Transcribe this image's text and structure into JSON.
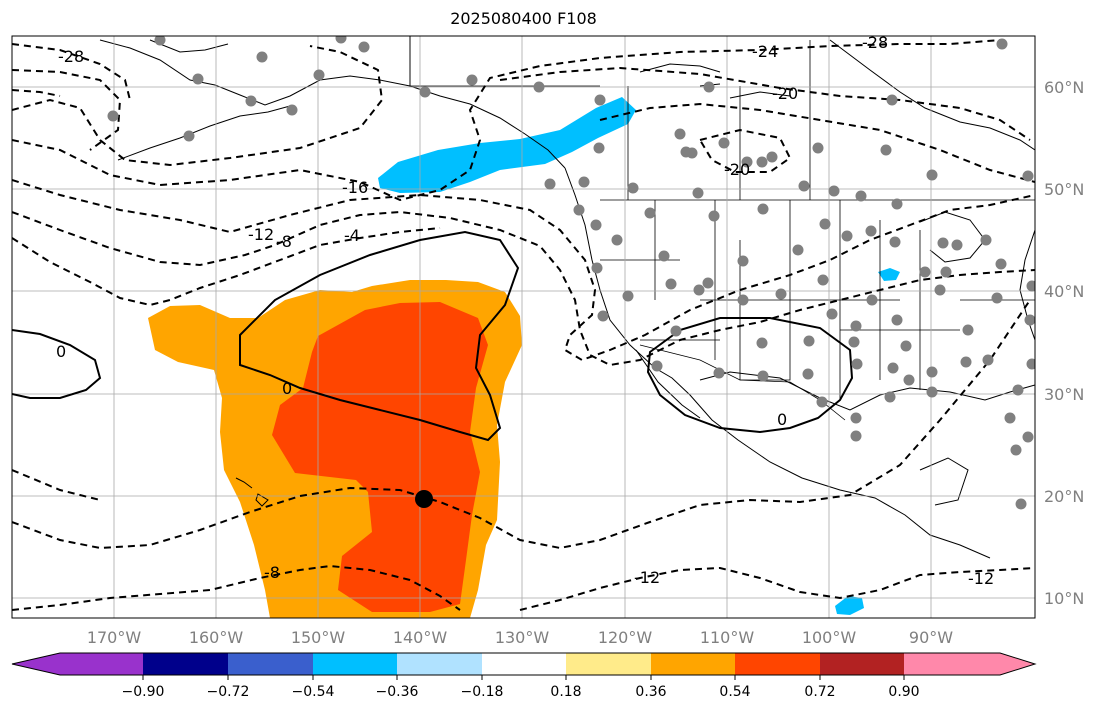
{
  "title": "2025080400 F108",
  "lat_labels": [
    {
      "text": "60°N",
      "lat": 60
    },
    {
      "text": "50°N",
      "lat": 50
    },
    {
      "text": "40°N",
      "lat": 40
    },
    {
      "text": "30°N",
      "lat": 30
    },
    {
      "text": "20°N",
      "lat": 20
    },
    {
      "text": "10°N",
      "lat": 10
    }
  ],
  "lon_labels": [
    {
      "text": "170°W",
      "lon": -170
    },
    {
      "text": "160°W",
      "lon": -160
    },
    {
      "text": "150°W",
      "lon": -150
    },
    {
      "text": "140°W",
      "lon": -140
    },
    {
      "text": "130°W",
      "lon": -130
    },
    {
      "text": "120°W",
      "lon": -120
    },
    {
      "text": "110°W",
      "lon": -110
    },
    {
      "text": "100°W",
      "lon": -100
    },
    {
      "text": "90°W",
      "lon": -90
    }
  ],
  "colorbar": {
    "ticks": [
      "−0.90",
      "−0.72",
      "−0.54",
      "−0.36",
      "−0.18",
      "0.18",
      "0.36",
      "0.54",
      "0.72",
      "0.90"
    ],
    "colors": [
      "#9932cc",
      "#00008b",
      "#3a5fcd",
      "#00bfff",
      "#b0e2ff",
      "#ffffff",
      "#ffeb8a",
      "#ffa500",
      "#ff4500",
      "#b22222",
      "#ff88aa"
    ]
  },
  "contour_labels": [
    "-28",
    "-24",
    "-28",
    "-20",
    "-20",
    "-16",
    "-12",
    "-8",
    "-4",
    "0",
    "0",
    "0",
    "-8",
    "-12",
    "-12"
  ],
  "marker_color": "#808080",
  "center_marker_color": "#000000"
}
